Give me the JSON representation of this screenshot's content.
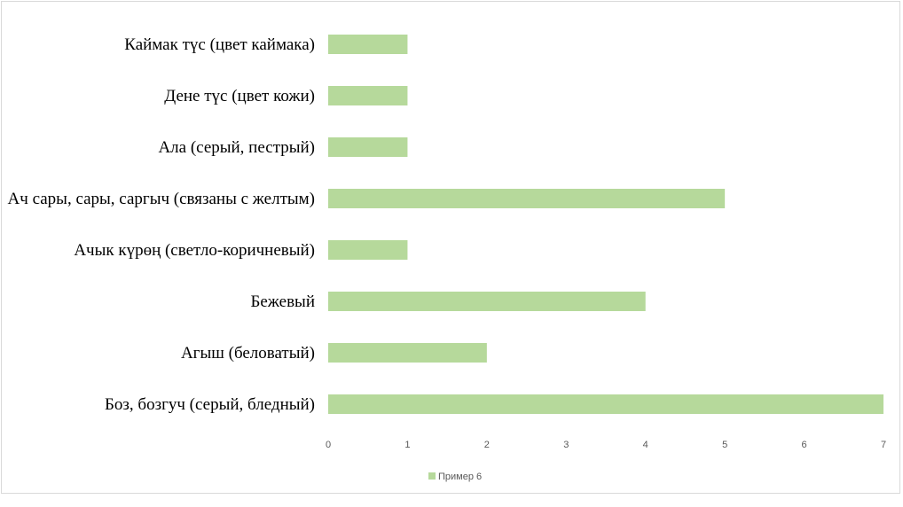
{
  "chart_data": {
    "type": "bar",
    "orientation": "horizontal",
    "categories": [
      "Каймак түс (цвет каймака)",
      "Дене түс  (цвет кожи)",
      "Ала (серый, пестрый)",
      "Ач сары, сары, саргыч (связаны с желтым)",
      "Ачык күрөң (светло-коричневый)",
      "Бежевый",
      "Агыш (беловатый)",
      "Боз, бозгуч (серый, бледный)"
    ],
    "series": [
      {
        "name": "Пример 6",
        "values": [
          1,
          1,
          1,
          5,
          1,
          4,
          2,
          7
        ],
        "color": "#b6d99b"
      }
    ],
    "xticks": [
      "0",
      "1",
      "2",
      "3",
      "4",
      "5",
      "6",
      "7"
    ],
    "xlim": [
      0,
      7
    ],
    "title": "",
    "xlabel": "",
    "ylabel": "",
    "grid": false,
    "legend_position": "bottom"
  }
}
